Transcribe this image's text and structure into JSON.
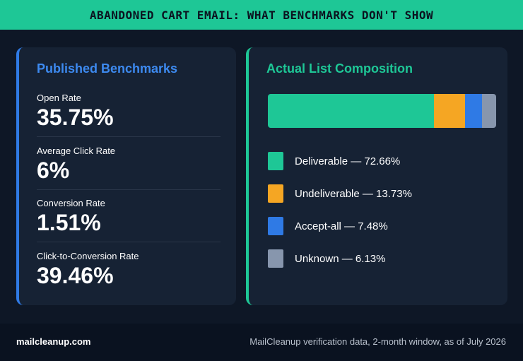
{
  "header": {
    "title": "ABANDONED CART EMAIL: WHAT BENCHMARKS DON'T SHOW"
  },
  "benchmarks": {
    "title": "Published Benchmarks",
    "metrics": [
      {
        "label": "Open Rate",
        "value": "35.75%"
      },
      {
        "label": "Average Click Rate",
        "value": "6%"
      },
      {
        "label": "Conversion Rate",
        "value": "1.51%"
      },
      {
        "label": "Click-to-Conversion Rate",
        "value": "39.46%"
      }
    ]
  },
  "composition": {
    "title": "Actual List Composition"
  },
  "chart_data": {
    "type": "bar",
    "stacked": true,
    "orientation": "horizontal",
    "title": "Actual List Composition",
    "segments": [
      {
        "name": "Deliverable",
        "value": 72.66,
        "label": "Deliverable — 72.66%",
        "color": "#1ec796"
      },
      {
        "name": "Undeliverable",
        "value": 13.73,
        "label": "Undeliverable — 13.73%",
        "color": "#f5a623"
      },
      {
        "name": "Accept-all",
        "value": 7.48,
        "label": "Accept-all — 7.48%",
        "color": "#2f7ae5"
      },
      {
        "name": "Unknown",
        "value": 6.13,
        "label": "Unknown — 6.13%",
        "color": "#8796ad"
      }
    ],
    "legend": "below"
  },
  "footer": {
    "brand": "mailcleanup.com",
    "source": "MailCleanup verification data, 2-month window, as of July 2026"
  }
}
